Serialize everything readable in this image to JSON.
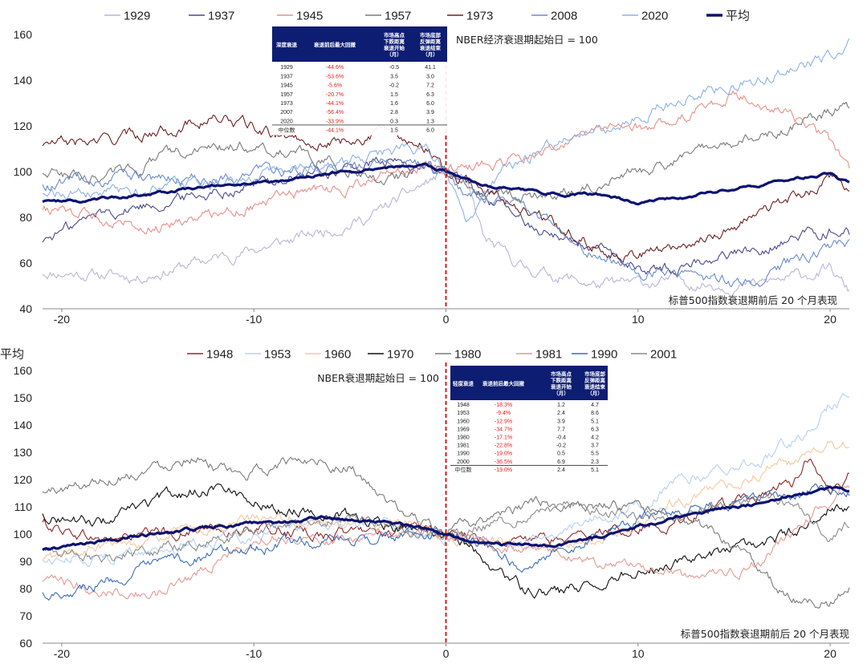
{
  "chart_data": [
    {
      "type": "line",
      "subtitle": "标普500指数衰退期前后 20 个月表现",
      "annotation": "NBER经济衰退期起始日 = 100",
      "xlabel": "",
      "ylabel": "",
      "xlim": [
        -21,
        21
      ],
      "ylim": [
        40,
        160
      ],
      "xticks": [
        -20,
        -10,
        0,
        10,
        20
      ],
      "yticks": [
        40,
        60,
        80,
        100,
        120,
        140,
        160
      ],
      "grid": false,
      "legend_position": "top",
      "reference_line": {
        "x": 0,
        "color": "#cc1f1f",
        "style": "dashed"
      },
      "series": [
        {
          "name": "1929",
          "color": "#b9b6d8",
          "width": 1.1,
          "x": [
            -20,
            -16,
            -12,
            -8,
            -4,
            -2,
            0,
            1,
            2,
            4,
            8,
            12,
            16,
            20,
            21
          ],
          "values": [
            56,
            54,
            62,
            70,
            80,
            90,
            100,
            95,
            70,
            58,
            50,
            52,
            50,
            57,
            47
          ]
        },
        {
          "name": "1937",
          "color": "#4b4a8c",
          "width": 1.1,
          "x": [
            -21,
            -18,
            -14,
            -10,
            -6,
            -3,
            0,
            2,
            4,
            6,
            8,
            10,
            12,
            14,
            16,
            18,
            20,
            21
          ],
          "values": [
            70,
            82,
            88,
            95,
            100,
            104,
            100,
            90,
            78,
            72,
            65,
            57,
            58,
            63,
            66,
            71,
            75,
            73
          ]
        },
        {
          "name": "1945",
          "color": "#e4918a",
          "width": 1.1,
          "x": [
            -21,
            -18,
            -15,
            -12,
            -8,
            -4,
            -1,
            0,
            3,
            6,
            9,
            12,
            14,
            15,
            17,
            19,
            20,
            21
          ],
          "values": [
            84,
            80,
            77,
            82,
            90,
            95,
            102,
            100,
            104,
            112,
            118,
            122,
            130,
            134,
            128,
            120,
            112,
            100
          ]
        },
        {
          "name": "1957",
          "color": "#7a7a7a",
          "width": 1.1,
          "x": [
            -21,
            -18,
            -14,
            -10,
            -6,
            -3,
            0,
            2,
            4,
            6,
            8,
            10,
            12,
            14,
            16,
            18,
            20,
            21
          ],
          "values": [
            100,
            98,
            108,
            112,
            104,
            97,
            100,
            92,
            89,
            91,
            96,
            100,
            105,
            110,
            116,
            120,
            126,
            128
          ]
        },
        {
          "name": "1973",
          "color": "#6b2121",
          "width": 1.1,
          "x": [
            -21,
            -18,
            -15,
            -12,
            -9,
            -6,
            -3,
            -1,
            0,
            2,
            4,
            6,
            8,
            10,
            12,
            14,
            16,
            18,
            20,
            21
          ],
          "values": [
            112,
            113,
            118,
            124,
            116,
            113,
            117,
            112,
            100,
            92,
            85,
            75,
            67,
            64,
            67,
            73,
            80,
            88,
            96,
            92
          ]
        },
        {
          "name": "2008",
          "color": "#6a8cc8",
          "width": 1.1,
          "x": [
            -21,
            -18,
            -14,
            -10,
            -6,
            -3,
            0,
            1,
            2,
            4,
            6,
            8,
            10,
            12,
            14,
            16,
            18,
            20,
            21
          ],
          "values": [
            95,
            96,
            97,
            99,
            102,
            105,
            100,
            92,
            90,
            85,
            75,
            62,
            58,
            55,
            52,
            50,
            60,
            65,
            70
          ]
        },
        {
          "name": "2020",
          "color": "#8fb2e2",
          "width": 1.1,
          "x": [
            -21,
            -18,
            -14,
            -10,
            -6,
            -3,
            -1,
            0,
            1,
            2,
            3,
            5,
            8,
            11,
            14,
            17,
            20,
            21
          ],
          "values": [
            91,
            90,
            93,
            97,
            102,
            108,
            112,
            100,
            78,
            90,
            100,
            110,
            118,
            128,
            135,
            142,
            150,
            156
          ]
        },
        {
          "name": "平均",
          "color": "#0b1272",
          "width": 3.2,
          "x": [
            -21,
            -18,
            -15,
            -12,
            -9,
            -6,
            -3,
            -1,
            0,
            2,
            4,
            6,
            8,
            10,
            12,
            14,
            16,
            18,
            20,
            21
          ],
          "values": [
            87,
            88,
            91,
            94,
            96,
            99,
            102,
            103,
            100,
            94,
            92,
            90,
            90,
            86,
            88,
            91,
            94,
            97,
            99,
            95
          ]
        }
      ],
      "table": {
        "headers": [
          "深度衰退",
          "衰退前后最大回撤",
          "市场高点下跌距离衰退开始（月）",
          "市场底部反弹距离衰退结束（月）"
        ],
        "rows": [
          [
            "1929",
            "-44.6%",
            "-0.5",
            "41.1"
          ],
          [
            "1937",
            "-53.6%",
            "3.5",
            "3.0"
          ],
          [
            "1945",
            "-5.6%",
            "-0.2",
            "7.2"
          ],
          [
            "1957",
            "-20.7%",
            "1.5",
            "6.3"
          ],
          [
            "1973",
            "-44.1%",
            "1.6",
            "6.0"
          ],
          [
            "2007",
            "-56.4%",
            "2.8",
            "3.9"
          ],
          [
            "2020",
            "-33.9%",
            "0.3",
            "1.3"
          ],
          [
            "中位数",
            "-44.1%",
            "1.5",
            "6.0"
          ]
        ]
      }
    },
    {
      "type": "line",
      "subtitle": "标普500指数衰退期前后 20 个月表现",
      "annotation": "NBER衰退期起始日 = 100",
      "xlabel": "",
      "ylabel": "",
      "xlim": [
        -21,
        21
      ],
      "ylim": [
        60,
        160
      ],
      "xticks": [
        -20,
        -10,
        0,
        10,
        20
      ],
      "yticks": [
        60,
        70,
        80,
        90,
        100,
        110,
        120,
        130,
        140,
        150,
        160
      ],
      "grid": false,
      "legend_position": "top",
      "reference_line": {
        "x": 0,
        "color": "#cc1f1f",
        "style": "dashed"
      },
      "series": [
        {
          "name": "1948",
          "color": "#8a2a2a",
          "width": 1.1,
          "x": [
            -21,
            -18,
            -15,
            -12,
            -9,
            -6,
            -3,
            0,
            3,
            6,
            9,
            12,
            15,
            18,
            19,
            20,
            21
          ],
          "values": [
            104,
            98,
            100,
            102,
            101,
            100,
            102,
            100,
            97,
            98,
            101,
            105,
            110,
            118,
            130,
            115,
            122
          ]
        },
        {
          "name": "1953",
          "color": "#b8d0ec",
          "width": 1.1,
          "x": [
            -21,
            -18,
            -14,
            -10,
            -6,
            -3,
            0,
            3,
            6,
            9,
            12,
            15,
            17,
            19,
            20,
            21
          ],
          "values": [
            90,
            92,
            95,
            100,
            103,
            104,
            100,
            96,
            100,
            108,
            118,
            124,
            130,
            138,
            148,
            150
          ]
        },
        {
          "name": "1960",
          "color": "#f5c8a0",
          "width": 1.1,
          "x": [
            -21,
            -18,
            -14,
            -10,
            -6,
            -3,
            0,
            3,
            6,
            9,
            12,
            15,
            17,
            19,
            20,
            21
          ],
          "values": [
            90,
            95,
            100,
            105,
            104,
            103,
            100,
            96,
            95,
            100,
            112,
            118,
            124,
            128,
            134,
            131
          ]
        },
        {
          "name": "1970",
          "color": "#111111",
          "width": 1.1,
          "x": [
            -21,
            -18,
            -15,
            -12,
            -9,
            -6,
            -3,
            0,
            2,
            3,
            4,
            6,
            8,
            10,
            12,
            14,
            16,
            18,
            20,
            21
          ],
          "values": [
            107,
            104,
            112,
            118,
            110,
            108,
            103,
            100,
            92,
            85,
            80,
            78,
            82,
            87,
            90,
            92,
            95,
            100,
            110,
            108
          ]
        },
        {
          "name": "1980",
          "color": "#7b7b7b",
          "width": 1.1,
          "x": [
            -21,
            -18,
            -15,
            -13,
            -11,
            -9,
            -7,
            -5,
            -3,
            0,
            3,
            6,
            9,
            12,
            14,
            15,
            16,
            17,
            18,
            19,
            20,
            21
          ],
          "values": [
            115,
            120,
            125,
            130,
            120,
            125,
            128,
            125,
            110,
            100,
            108,
            112,
            110,
            105,
            100,
            95,
            90,
            82,
            78,
            74,
            75,
            80
          ]
        },
        {
          "name": "1981",
          "color": "#e29a92",
          "width": 1.1,
          "x": [
            -21,
            -18,
            -15,
            -12,
            -9,
            -6,
            -3,
            0,
            3,
            6,
            9,
            12,
            14,
            16,
            18,
            20,
            21
          ],
          "values": [
            82,
            80,
            78,
            90,
            100,
            98,
            100,
            100,
            96,
            92,
            88,
            85,
            84,
            88,
            100,
            112,
            118
          ]
        },
        {
          "name": "1990",
          "color": "#3d6fb8",
          "width": 1.1,
          "x": [
            -21,
            -18,
            -15,
            -12,
            -9,
            -6,
            -3,
            0,
            2,
            4,
            6,
            8,
            10,
            12,
            14,
            16,
            18,
            20,
            21
          ],
          "values": [
            78,
            82,
            88,
            93,
            96,
            97,
            99,
            100,
            95,
            88,
            95,
            100,
            105,
            108,
            110,
            112,
            114,
            116,
            115
          ]
        },
        {
          "name": "2001",
          "color": "#8c8c8c",
          "width": 1.1,
          "x": [
            -21,
            -18,
            -15,
            -12,
            -9,
            -6,
            -3,
            0,
            3,
            6,
            9,
            12,
            15,
            18,
            20,
            21
          ],
          "values": [
            94,
            92,
            95,
            98,
            102,
            105,
            104,
            100,
            105,
            110,
            108,
            106,
            112,
            113,
            100,
            103
          ]
        },
        {
          "name": "平均",
          "color": "#0b1272",
          "width": 3.2,
          "x": [
            -21,
            -18,
            -15,
            -12,
            -9,
            -6,
            -3,
            0,
            2,
            4,
            6,
            8,
            10,
            12,
            14,
            16,
            18,
            20,
            21
          ],
          "values": [
            94,
            97,
            100,
            103,
            104,
            106,
            104,
            100,
            97,
            96,
            96,
            99,
            103,
            106,
            109,
            111,
            114,
            117,
            116
          ]
        }
      ],
      "table": {
        "headers": [
          "轻度衰退",
          "衰退前后最大回撤",
          "市场高点下跌距离衰退开始（月）",
          "市场底部反弹距离衰退结束（月）"
        ],
        "rows": [
          [
            "1948",
            "-18.3%",
            "1.2",
            "4.7"
          ],
          [
            "1953",
            "-9.4%",
            "2.4",
            "8.6"
          ],
          [
            "1960",
            "-12.9%",
            "3.9",
            "5.1"
          ],
          [
            "1969",
            "-34.7%",
            "7.7",
            "6.3"
          ],
          [
            "1980",
            "-17.1%",
            "-0.4",
            "4.2"
          ],
          [
            "1981",
            "-22.8%",
            "-0.2",
            "3.7"
          ],
          [
            "1990",
            "-19.0%",
            "0.5",
            "5.5"
          ],
          [
            "2000",
            "-36.5%",
            "6.9",
            "2.3"
          ],
          [
            "中位数",
            "-19.0%",
            "2.4",
            "5.1"
          ]
        ]
      }
    }
  ]
}
